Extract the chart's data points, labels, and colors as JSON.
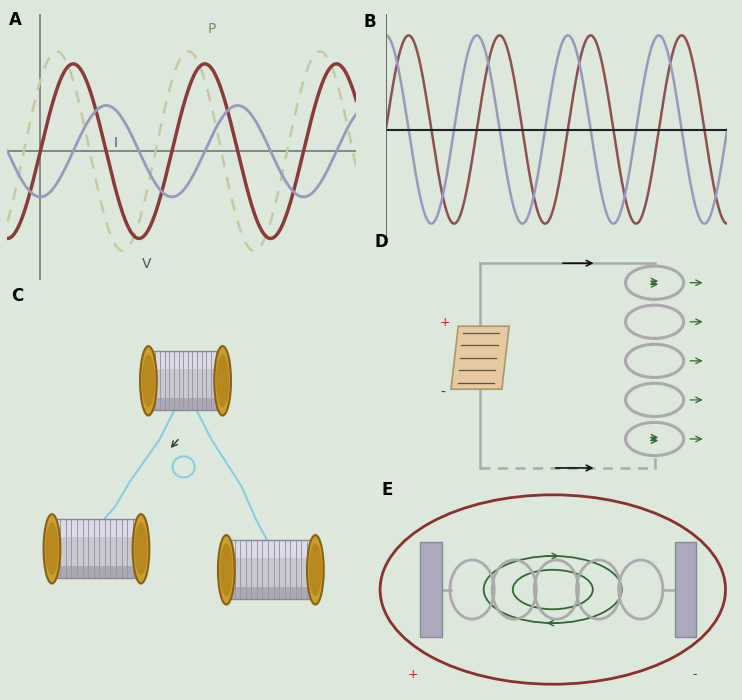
{
  "bg_color": "#dce8dc",
  "panel_A": {
    "label": "A",
    "brown_color": "#8B3A3A",
    "blue_color": "#9999BB",
    "dashed_color": "#BBBB99",
    "label_I": "I",
    "label_V": "V",
    "label_P": "P"
  },
  "panel_B": {
    "label": "B",
    "color1": "#9999BB",
    "color2": "#8B5050"
  },
  "panel_C": {
    "label": "C",
    "gold": "#C8A030",
    "silver": "#C0C0C8",
    "wire_color": "#88CCDD"
  },
  "panel_D": {
    "label": "D",
    "wire_color": "#AAAAAA",
    "arrow_color": "#222222",
    "box_fill": "#E8C8A0",
    "box_edge": "#AA9966",
    "green_arrow": "#336633",
    "plus_color": "#CC2222",
    "minus_color": "#333333"
  },
  "panel_E": {
    "label": "E",
    "coil_color": "#AAAAAA",
    "ellipse_color": "#8B3030",
    "green_color": "#336633",
    "plate_color": "#AAAABC",
    "plus_color": "#CC2222",
    "minus_color": "#333333"
  }
}
